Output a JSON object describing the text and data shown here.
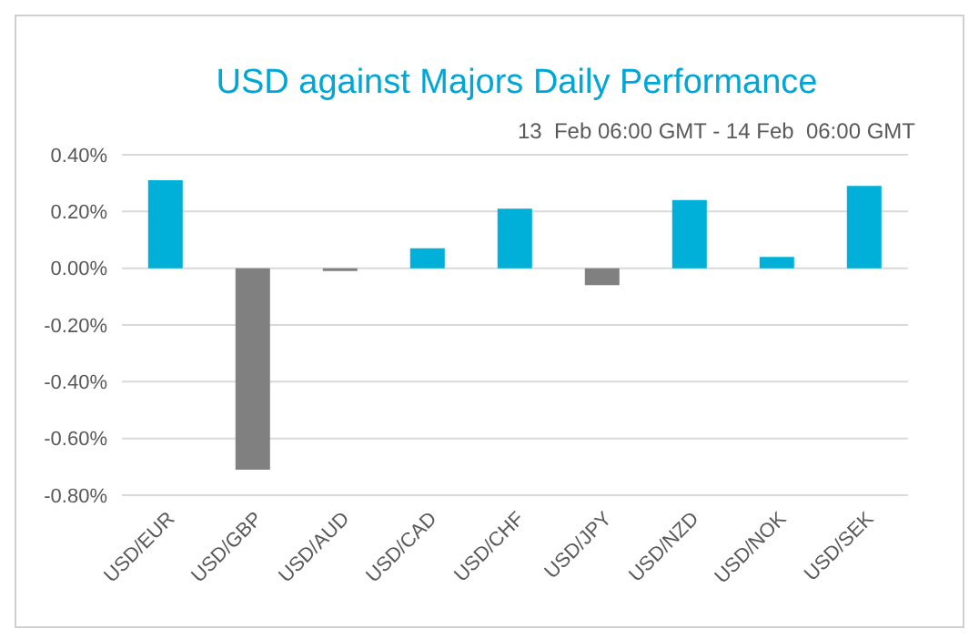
{
  "chart_data": {
    "type": "bar",
    "title": "USD against Majors Daily Performance",
    "subtitle": "13  Feb 06:00 GMT - 14 Feb  06:00 GMT",
    "categories": [
      "USD/EUR",
      "USD/GBP",
      "USD/AUD",
      "USD/CAD",
      "USD/CHF",
      "USD/JPY",
      "USD/NZD",
      "USD/NOK",
      "USD/SEK"
    ],
    "values": [
      0.31,
      -0.71,
      -0.01,
      0.07,
      0.21,
      -0.06,
      0.24,
      0.04,
      0.29
    ],
    "colors": [
      "#00b0d8",
      "#808080",
      "#808080",
      "#00b0d8",
      "#00b0d8",
      "#808080",
      "#00b0d8",
      "#00b0d8",
      "#00b0d8"
    ],
    "ylim": [
      -0.8,
      0.4
    ],
    "yticks": [
      {
        "value": -0.8,
        "label": "-0.80%"
      },
      {
        "value": -0.6,
        "label": "-0.60%"
      },
      {
        "value": -0.4,
        "label": "-0.40%"
      },
      {
        "value": -0.2,
        "label": "-0.20%"
      },
      {
        "value": 0,
        "label": "0.00%"
      },
      {
        "value": 0.2,
        "label": "0.20%"
      },
      {
        "value": 0.4,
        "label": "0.40%"
      }
    ],
    "grid": "y"
  }
}
